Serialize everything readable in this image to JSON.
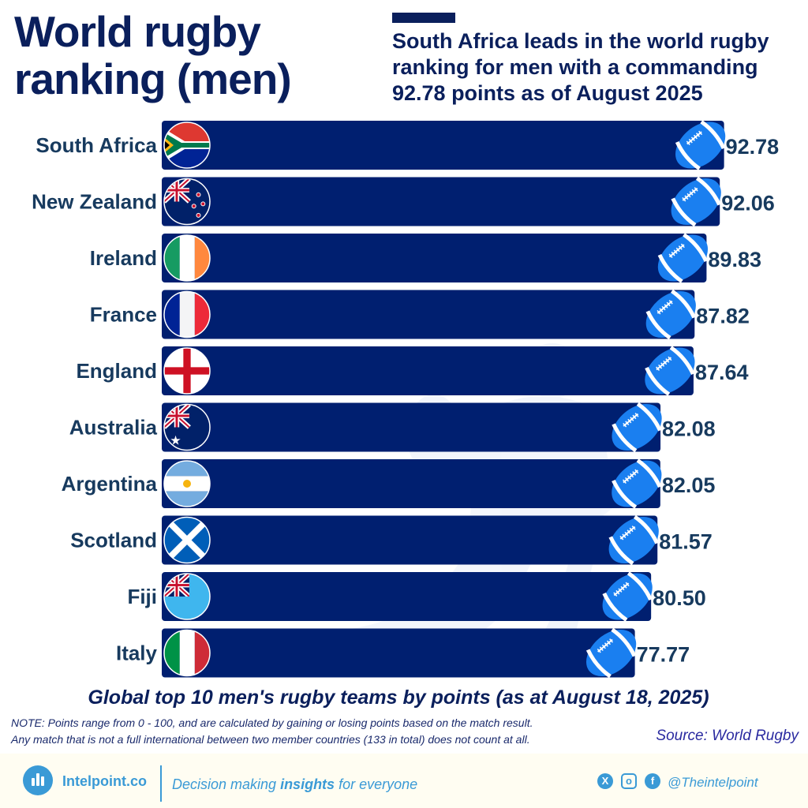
{
  "header": {
    "title_line1": "World rugby",
    "title_line2": "ranking (men)",
    "subtitle": "South Africa leads in the world rugby ranking for men with a commanding 92.78 points as of August 2025"
  },
  "chart_data": {
    "type": "bar",
    "orientation": "horizontal",
    "categories": [
      "South Africa",
      "New Zealand",
      "Ireland",
      "France",
      "England",
      "Australia",
      "Argentina",
      "Scotland",
      "Fiji",
      "Italy"
    ],
    "flags": [
      "south-africa-flag",
      "new-zealand-flag",
      "ireland-flag",
      "france-flag",
      "england-flag",
      "australia-flag",
      "argentina-flag",
      "scotland-flag",
      "fiji-flag",
      "italy-flag"
    ],
    "values": [
      92.78,
      92.06,
      89.83,
      87.82,
      87.64,
      82.08,
      82.05,
      81.57,
      80.5,
      77.77
    ],
    "value_labels": [
      "92.78",
      "92.06",
      "89.83",
      "87.82",
      "87.64",
      "82.08",
      "82.05",
      "81.57",
      "80.50",
      "77.77"
    ],
    "title": "Global top 10 men's rugby teams by points (as at August 18, 2025)",
    "xlim": [
      0,
      100
    ],
    "grid": false,
    "legend": "none",
    "bar_color": "#001f70",
    "marker": "rugby-ball-icon",
    "marker_color": "#1a7ff0"
  },
  "notes": {
    "line1": "NOTE: Points range from 0 - 100, and are calculated by gaining or losing points based on the match result.",
    "line2": "Any match that is not a full international between two member countries (133 in total) does not count at all.",
    "source": "Source: World Rugby"
  },
  "footer": {
    "brand": "Intelpoint.co",
    "tagline_pre": "Decision making ",
    "tagline_bold": "insights",
    "tagline_post": " for everyone",
    "handle": "@Theintelpoint",
    "social": [
      "x-icon",
      "instagram-icon",
      "facebook-icon"
    ]
  }
}
